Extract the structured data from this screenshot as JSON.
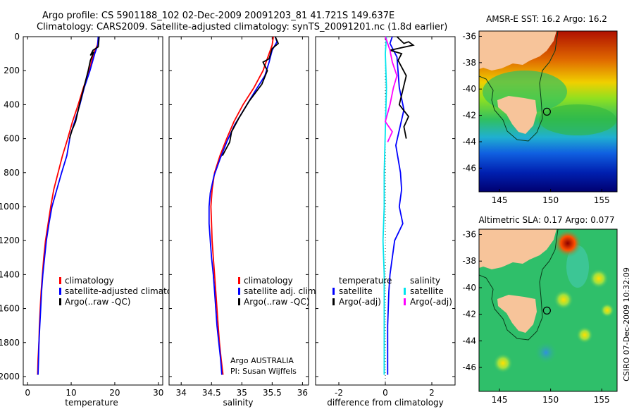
{
  "header": {
    "line1": "Argo profile: CS 5901188_102 02-Dec-2009 20091203_81 41.721S 149.637E",
    "line2": "Climatology: CARS2009. Satellite-adjusted climatology: synTS_20091201.nc (1.8d earlier)"
  },
  "colors": {
    "climatology": "#ff0000",
    "satellite": "#0000ff",
    "argo": "#000000",
    "satellite_sal": "#00e5ee",
    "argo_sal": "#ff00ff",
    "land": "#f7c49a"
  },
  "credit": "CSIRO 07-Dec-2009 10:32:09",
  "chart_data": [
    {
      "type": "line",
      "title": "",
      "xlabel": "temperature",
      "ylabel": "",
      "xlim": [
        -1,
        31
      ],
      "ylim": [
        2050,
        0
      ],
      "xticks": [
        0,
        10,
        20,
        30
      ],
      "yticks": [
        0,
        200,
        400,
        600,
        800,
        1000,
        1200,
        1400,
        1600,
        1800,
        2000
      ],
      "legend": [
        "climatology",
        "satellite-adjusted climatology",
        "Argo(..raw -QC)"
      ],
      "series": [
        {
          "name": "climatology",
          "color": "#ff0000",
          "points": [
            [
              16.3,
              0
            ],
            [
              16.0,
              50
            ],
            [
              15.1,
              100
            ],
            [
              14.2,
              200
            ],
            [
              12.8,
              300
            ],
            [
              11.6,
              400
            ],
            [
              10.3,
              500
            ],
            [
              9.2,
              600
            ],
            [
              8.0,
              700
            ],
            [
              7.0,
              800
            ],
            [
              6.0,
              900
            ],
            [
              5.3,
              1000
            ],
            [
              4.7,
              1100
            ],
            [
              4.1,
              1200
            ],
            [
              3.7,
              1300
            ],
            [
              3.4,
              1400
            ],
            [
              3.1,
              1500
            ],
            [
              2.9,
              1600
            ],
            [
              2.7,
              1700
            ],
            [
              2.6,
              1800
            ],
            [
              2.4,
              1900
            ],
            [
              2.3,
              1990
            ]
          ]
        },
        {
          "name": "satellite-adjusted climatology",
          "color": "#0000ff",
          "points": [
            [
              16.2,
              0
            ],
            [
              16.1,
              50
            ],
            [
              15.4,
              100
            ],
            [
              14.3,
              200
            ],
            [
              13.0,
              300
            ],
            [
              12.0,
              400
            ],
            [
              10.8,
              500
            ],
            [
              9.8,
              580
            ],
            [
              9.0,
              700
            ],
            [
              7.8,
              800
            ],
            [
              6.7,
              900
            ],
            [
              5.6,
              1000
            ],
            [
              4.9,
              1100
            ],
            [
              4.3,
              1200
            ],
            [
              3.9,
              1300
            ],
            [
              3.5,
              1400
            ],
            [
              3.2,
              1500
            ],
            [
              3.0,
              1600
            ],
            [
              2.8,
              1700
            ],
            [
              2.6,
              1800
            ],
            [
              2.5,
              1900
            ],
            [
              2.4,
              1990
            ]
          ]
        },
        {
          "name": "Argo(..raw -QC)",
          "color": "#000000",
          "points": [
            [
              16.4,
              0
            ],
            [
              16.3,
              40
            ],
            [
              16.2,
              60
            ],
            [
              15.0,
              80
            ],
            [
              14.4,
              110
            ],
            [
              15.2,
              90
            ],
            [
              14.4,
              140
            ],
            [
              13.9,
              200
            ],
            [
              12.9,
              300
            ],
            [
              11.9,
              400
            ],
            [
              11.0,
              500
            ],
            [
              10.2,
              550
            ],
            [
              9.6,
              600
            ]
          ]
        }
      ]
    },
    {
      "type": "line",
      "title": "",
      "xlabel": "salinity",
      "ylabel": "",
      "xlim": [
        33.8,
        36.1
      ],
      "ylim": [
        2050,
        0
      ],
      "xticks": [
        34,
        34.5,
        35,
        35.5,
        36
      ],
      "legend": [
        "climatology",
        "satellite adj. clim.",
        "Argo(..raw -QC)"
      ],
      "annotation": [
        "Argo AUSTRALIA",
        "PI: Susan Wijffels"
      ],
      "series": [
        {
          "name": "climatology",
          "color": "#ff0000",
          "points": [
            [
              35.52,
              0
            ],
            [
              35.5,
              50
            ],
            [
              35.45,
              100
            ],
            [
              35.35,
              200
            ],
            [
              35.2,
              300
            ],
            [
              35.02,
              400
            ],
            [
              34.87,
              500
            ],
            [
              34.75,
              600
            ],
            [
              34.64,
              700
            ],
            [
              34.55,
              800
            ],
            [
              34.51,
              900
            ],
            [
              34.49,
              1000
            ],
            [
              34.5,
              1100
            ],
            [
              34.51,
              1200
            ],
            [
              34.53,
              1300
            ],
            [
              34.55,
              1400
            ],
            [
              34.57,
              1500
            ],
            [
              34.59,
              1600
            ],
            [
              34.61,
              1700
            ],
            [
              34.63,
              1800
            ],
            [
              34.66,
              1900
            ],
            [
              34.69,
              1990
            ]
          ]
        },
        {
          "name": "satellite adj. clim.",
          "color": "#0000ff",
          "points": [
            [
              35.55,
              0
            ],
            [
              35.58,
              30
            ],
            [
              35.5,
              80
            ],
            [
              35.45,
              150
            ],
            [
              35.38,
              230
            ],
            [
              35.22,
              320
            ],
            [
              35.05,
              420
            ],
            [
              34.88,
              520
            ],
            [
              34.75,
              620
            ],
            [
              34.64,
              720
            ],
            [
              34.54,
              820
            ],
            [
              34.48,
              920
            ],
            [
              34.46,
              1000
            ],
            [
              34.46,
              1100
            ],
            [
              34.48,
              1200
            ],
            [
              34.5,
              1300
            ],
            [
              34.53,
              1400
            ],
            [
              34.55,
              1500
            ],
            [
              34.57,
              1600
            ],
            [
              34.59,
              1700
            ],
            [
              34.62,
              1800
            ],
            [
              34.65,
              1900
            ],
            [
              34.67,
              1990
            ]
          ]
        },
        {
          "name": "Argo(..raw -QC)",
          "color": "#000000",
          "points": [
            [
              35.55,
              0
            ],
            [
              35.6,
              40
            ],
            [
              35.5,
              70
            ],
            [
              35.45,
              130
            ],
            [
              35.35,
              150
            ],
            [
              35.42,
              200
            ],
            [
              35.33,
              280
            ],
            [
              35.12,
              380
            ],
            [
              34.95,
              480
            ],
            [
              34.83,
              560
            ],
            [
              34.8,
              620
            ],
            [
              34.68,
              700
            ]
          ]
        }
      ]
    },
    {
      "type": "line",
      "title": "",
      "xlabel": "difference from climatology",
      "ylabel": "",
      "xlim": [
        -3,
        3
      ],
      "ylim": [
        2050,
        0
      ],
      "xticks": [
        -2,
        0,
        2
      ],
      "legend": [
        "temperature",
        "satellite",
        "Argo(-adj)",
        "salinity",
        "satellite",
        "Argo(-adj)"
      ],
      "series": [
        {
          "name": "temperature satellite",
          "color": "#0000ff",
          "points": [
            [
              0.3,
              0
            ],
            [
              0.2,
              40
            ],
            [
              0.5,
              120
            ],
            [
              0.6,
              300
            ],
            [
              0.8,
              430
            ],
            [
              0.6,
              550
            ],
            [
              0.45,
              640
            ],
            [
              0.65,
              800
            ],
            [
              0.7,
              900
            ],
            [
              0.6,
              1000
            ],
            [
              0.75,
              1100
            ],
            [
              0.4,
              1200
            ],
            [
              0.3,
              1300
            ],
            [
              0.2,
              1400
            ],
            [
              0.15,
              1500
            ],
            [
              0.1,
              1700
            ],
            [
              0.1,
              1990
            ]
          ]
        },
        {
          "name": "temperature Argo(-adj)",
          "color": "#000000",
          "points": [
            [
              0.5,
              0
            ],
            [
              0.8,
              40
            ],
            [
              1.0,
              30
            ],
            [
              1.2,
              50
            ],
            [
              0.2,
              80
            ],
            [
              0.7,
              100
            ],
            [
              0.55,
              140
            ],
            [
              0.9,
              230
            ],
            [
              0.6,
              400
            ],
            [
              1.0,
              470
            ],
            [
              0.8,
              530
            ],
            [
              0.9,
              600
            ]
          ]
        },
        {
          "name": "salinity satellite",
          "color": "#00e5ee",
          "points": [
            [
              0.05,
              0
            ],
            [
              0.0,
              100
            ],
            [
              0.05,
              300
            ],
            [
              0.0,
              550
            ],
            [
              -0.05,
              800
            ],
            [
              -0.05,
              1000
            ],
            [
              -0.1,
              1200
            ],
            [
              -0.05,
              1400
            ],
            [
              -0.05,
              1700
            ],
            [
              -0.05,
              1990
            ]
          ]
        },
        {
          "name": "salinity Argo(-adj)",
          "color": "#ff00ff",
          "points": [
            [
              0.0,
              0
            ],
            [
              0.1,
              40
            ],
            [
              0.2,
              80
            ],
            [
              0.3,
              150
            ],
            [
              0.5,
              230
            ],
            [
              0.35,
              300
            ],
            [
              0.2,
              400
            ],
            [
              0.0,
              500
            ],
            [
              0.3,
              560
            ],
            [
              0.1,
              620
            ]
          ]
        }
      ]
    },
    {
      "type": "heatmap",
      "title": "AMSR-E SST: 16.2 Argo: 16.2",
      "xlabel": "",
      "ylabel": "",
      "xlim": [
        143,
        156.5
      ],
      "ylim": [
        -47.8,
        -35.6
      ],
      "xticks": [
        145,
        150,
        155
      ],
      "yticks": [
        -36,
        -38,
        -40,
        -42,
        -44,
        -46
      ],
      "profile_location": [
        149.637,
        -41.721
      ]
    },
    {
      "type": "heatmap",
      "title": "Altimetric SLA: 0.17 Argo: 0.077",
      "xlabel": "",
      "ylabel": "",
      "xlim": [
        143,
        156.5
      ],
      "ylim": [
        -47.8,
        -35.6
      ],
      "xticks": [
        145,
        150,
        155
      ],
      "yticks": [
        -36,
        -38,
        -40,
        -42,
        -44,
        -46
      ],
      "profile_location": [
        149.637,
        -41.721
      ]
    }
  ]
}
